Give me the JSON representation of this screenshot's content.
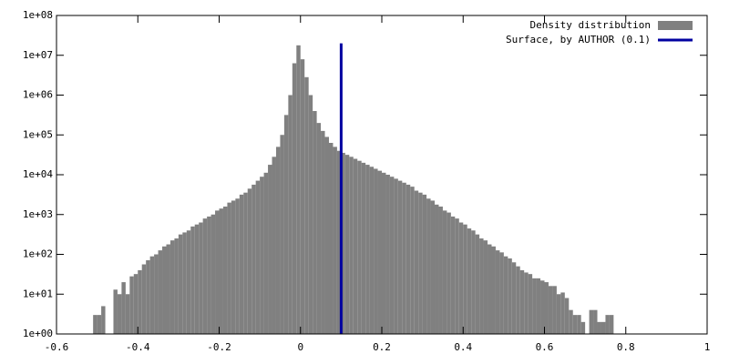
{
  "chart_data": {
    "type": "histogram",
    "log_y": true,
    "legend": "top right",
    "bins": [
      -0.51,
      -0.5,
      -0.49,
      -0.48,
      -0.47,
      -0.46,
      -0.45,
      -0.44,
      -0.43,
      -0.42,
      -0.41,
      -0.4,
      -0.39,
      -0.38,
      -0.37,
      -0.36,
      -0.35,
      -0.34,
      -0.33,
      -0.32,
      -0.31,
      -0.3,
      -0.29,
      -0.28,
      -0.27,
      -0.26,
      -0.25,
      -0.24,
      -0.23,
      -0.22,
      -0.21,
      -0.2,
      -0.19,
      -0.18,
      -0.17,
      -0.16,
      -0.15,
      -0.14,
      -0.13,
      -0.12,
      -0.11,
      -0.1,
      -0.09,
      -0.08,
      -0.07,
      -0.06,
      -0.05,
      -0.04,
      -0.03,
      -0.02,
      -0.01,
      0,
      0.01,
      0.02,
      0.03,
      0.04,
      0.05,
      0.06,
      0.07,
      0.08,
      0.09,
      0.1,
      0.11,
      0.12,
      0.13,
      0.14,
      0.15,
      0.16,
      0.17,
      0.18,
      0.19,
      0.2,
      0.21,
      0.22,
      0.23,
      0.24,
      0.25,
      0.26,
      0.27,
      0.28,
      0.29,
      0.3,
      0.31,
      0.32,
      0.33,
      0.34,
      0.35,
      0.36,
      0.37,
      0.38,
      0.39,
      0.4,
      0.41,
      0.42,
      0.43,
      0.44,
      0.45,
      0.46,
      0.47,
      0.48,
      0.49,
      0.5,
      0.51,
      0.52,
      0.53,
      0.54,
      0.55,
      0.56,
      0.57,
      0.58,
      0.59,
      0.6,
      0.61,
      0.62,
      0.63,
      0.64,
      0.65,
      0.66,
      0.67,
      0.68,
      0.69,
      0.7,
      0.71,
      0.72,
      0.73,
      0.74,
      0.75,
      0.76,
      0.77,
      0.78
    ],
    "series": [
      {
        "name": "Density distribution",
        "color": "#808080",
        "values": [
          3,
          3,
          5,
          0,
          0,
          13,
          10,
          20,
          10,
          28,
          32,
          40,
          56,
          71,
          89,
          100,
          126,
          158,
          178,
          224,
          251,
          316,
          355,
          398,
          501,
          562,
          631,
          794,
          891,
          1000,
          1259,
          1413,
          1585,
          1995,
          2239,
          2512,
          3162,
          3548,
          4467,
          5623,
          7079,
          8913,
          11220,
          17783,
          28184,
          50119,
          100000,
          316228,
          1000000,
          6309573,
          17782794,
          7943282,
          2818383,
          1000000,
          398107,
          199526,
          125893,
          89125,
          63096,
          50119,
          39811,
          35481,
          31623,
          28184,
          25119,
          22387,
          19953,
          17783,
          15849,
          14125,
          12589,
          11220,
          10000,
          8913,
          7943,
          7079,
          6310,
          5623,
          5012,
          3981,
          3548,
          3162,
          2512,
          2239,
          1778,
          1585,
          1259,
          1122,
          891,
          794,
          631,
          562,
          447,
          398,
          316,
          251,
          224,
          178,
          158,
          126,
          112,
          89,
          79,
          63,
          50,
          40,
          35,
          32,
          25,
          25,
          22,
          20,
          16,
          16,
          10,
          11,
          8,
          4,
          3,
          3,
          2,
          0,
          4,
          4,
          2,
          2,
          3,
          3,
          0
        ]
      },
      {
        "name": "Surface, by AUTHOR (0.1)",
        "color": "#0000a0",
        "type": "line",
        "x": [
          0.1,
          0.1
        ],
        "values": [
          1,
          20000000
        ]
      }
    ],
    "xlim": [
      -0.6,
      1
    ],
    "xticks": [
      -0.6,
      -0.4,
      -0.2,
      0,
      0.2,
      0.4,
      0.6,
      0.8,
      1
    ],
    "ylim": [
      1,
      100000000
    ],
    "yticks": [
      {
        "value": 1,
        "label": "1e+00"
      },
      {
        "value": 10,
        "label": "1e+01"
      },
      {
        "value": 100,
        "label": "1e+02"
      },
      {
        "value": 1000,
        "label": "1e+03"
      },
      {
        "value": 10000,
        "label": "1e+04"
      },
      {
        "value": 100000,
        "label": "1e+05"
      },
      {
        "value": 1000000,
        "label": "1e+06"
      },
      {
        "value": 10000000,
        "label": "1e+07"
      },
      {
        "value": 100000000,
        "label": "1e+08"
      }
    ]
  }
}
